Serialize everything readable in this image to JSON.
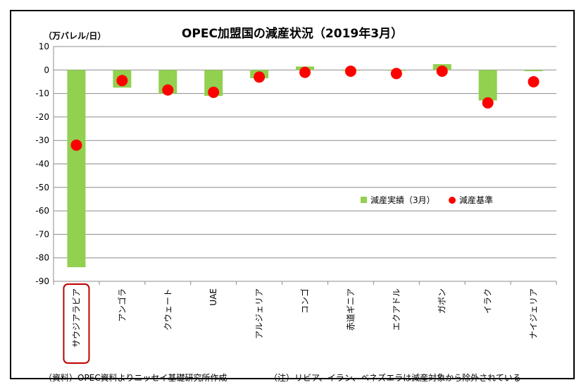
{
  "chart_data": {
    "type": "bar",
    "title": "OPEC加盟国の減産状況（2019年3月）",
    "ylabel": "（万バレル/日）",
    "xlabel": "",
    "ylim": [
      -90,
      10
    ],
    "yticks": [
      10,
      0,
      -10,
      -20,
      -30,
      -40,
      -50,
      -60,
      -70,
      -80,
      -90
    ],
    "grid": true,
    "legend_position": "center-right",
    "categories": [
      "サウジアラビア",
      "アンゴラ",
      "クウェート",
      "UAE",
      "アルジェリア",
      "コンゴ",
      "赤道ギニア",
      "エクアドル",
      "ガボン",
      "イラク",
      "ナイジェリア"
    ],
    "highlighted_category": "サウジアラビア",
    "series": [
      {
        "name": "減産実績（3月）",
        "type": "bar",
        "color": "#92d050",
        "values": [
          -84,
          -7.5,
          -10,
          -11,
          -3.5,
          1.5,
          0,
          0,
          2.5,
          -13,
          -0.5
        ]
      },
      {
        "name": "減産基準",
        "type": "scatter",
        "color": "#ff0000",
        "values": [
          -32,
          -4.5,
          -8.5,
          -9.5,
          -3,
          -1,
          -0.5,
          -1.5,
          -0.5,
          -14,
          -5
        ]
      }
    ]
  },
  "notes": {
    "source": "（資料）OPEC資料よりニッセイ基礎研究所作成",
    "footnote": "（注）リビア、イラン、ベネズエラは減産対象から除外されている"
  }
}
